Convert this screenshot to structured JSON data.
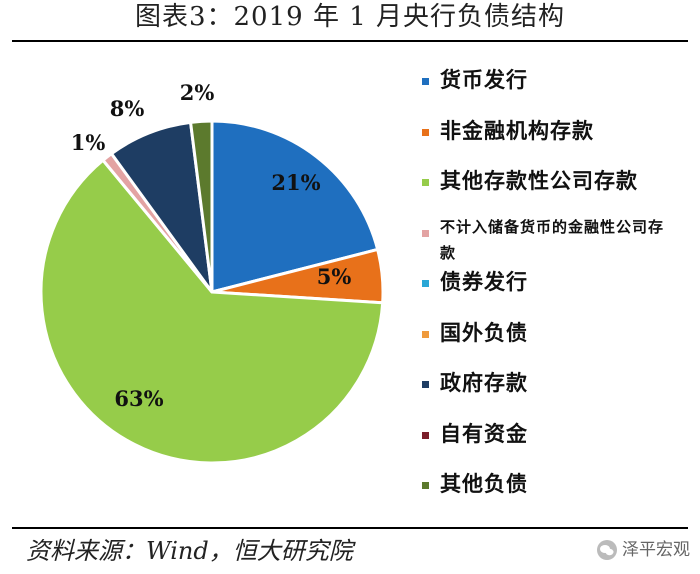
{
  "title": "图表3：2019 年 1 月央行负债结构",
  "chart_data": {
    "type": "pie",
    "title": "图表3：2019 年 1 月央行负债结构",
    "slices": [
      {
        "name": "货币发行",
        "value": 21,
        "label": "21%",
        "color": "#1f6fbf"
      },
      {
        "name": "非金融机构存款",
        "value": 5,
        "label": "5%",
        "color": "#e8711a"
      },
      {
        "name": "其他存款性公司存款",
        "value": 63,
        "label": "63%",
        "color": "#96cc4a"
      },
      {
        "name": "不计入储备货币的金融性公司存款",
        "value": 1,
        "label": "1%",
        "color": "#e3a3a3"
      },
      {
        "name": "债券发行",
        "value": 0,
        "label": "",
        "color": "#2aa7d6"
      },
      {
        "name": "国外负债",
        "value": 0,
        "label": "",
        "color": "#ef9a3c"
      },
      {
        "name": "政府存款",
        "value": 8,
        "label": "8%",
        "color": "#1e3d63"
      },
      {
        "name": "自有资金",
        "value": 0,
        "label": "",
        "color": "#7b1e2a"
      },
      {
        "name": "其他负债",
        "value": 2,
        "label": "2%",
        "color": "#5c7a2d"
      }
    ],
    "legend_position": "right"
  },
  "source": "资料来源：Wind，恒大研究院",
  "watermark": "泽平宏观"
}
